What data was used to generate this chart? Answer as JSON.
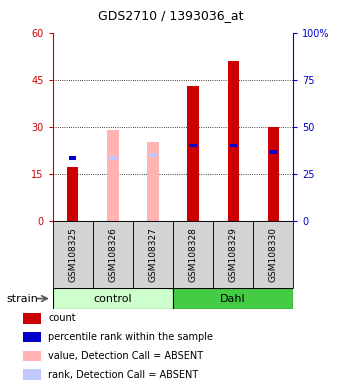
{
  "title": "GDS2710 / 1393036_at",
  "samples": [
    "GSM108325",
    "GSM108326",
    "GSM108327",
    "GSM108328",
    "GSM108329",
    "GSM108330"
  ],
  "red_bar_heights": [
    17,
    0,
    0,
    43,
    51,
    30
  ],
  "pink_bar_heights": [
    0,
    29,
    25,
    0,
    0,
    0
  ],
  "blue_marker_y": [
    20,
    0,
    0,
    24,
    24,
    22
  ],
  "light_blue_marker_y": [
    0,
    20,
    21,
    0,
    0,
    0
  ],
  "absent_detection": [
    false,
    true,
    true,
    false,
    false,
    false
  ],
  "ylim_left": [
    0,
    60
  ],
  "ylim_right": [
    0,
    100
  ],
  "yticks_left": [
    0,
    15,
    30,
    45,
    60
  ],
  "yticks_right": [
    0,
    25,
    50,
    75,
    100
  ],
  "ytick_labels_left": [
    "0",
    "15",
    "30",
    "45",
    "60"
  ],
  "ytick_labels_right": [
    "0",
    "25",
    "50",
    "75",
    "100%"
  ],
  "left_axis_color": "#cc0000",
  "right_axis_color": "#0000cc",
  "grid_dotted_at": [
    15,
    30,
    45
  ],
  "bg_color": "#ffffff",
  "plot_bg": "#ffffff",
  "legend_items": [
    "count",
    "percentile rank within the sample",
    "value, Detection Call = ABSENT",
    "rank, Detection Call = ABSENT"
  ],
  "legend_colors": [
    "#cc0000",
    "#0000cc",
    "#ffb3b3",
    "#c0c8ff"
  ],
  "control_bg": "#ccffcc",
  "dahl_bg": "#44cc44",
  "sample_bg": "#d3d3d3",
  "red_color": "#cc0000",
  "pink_color": "#ffb3b3",
  "blue_color": "#0000cc",
  "light_blue_color": "#c0c8ff"
}
